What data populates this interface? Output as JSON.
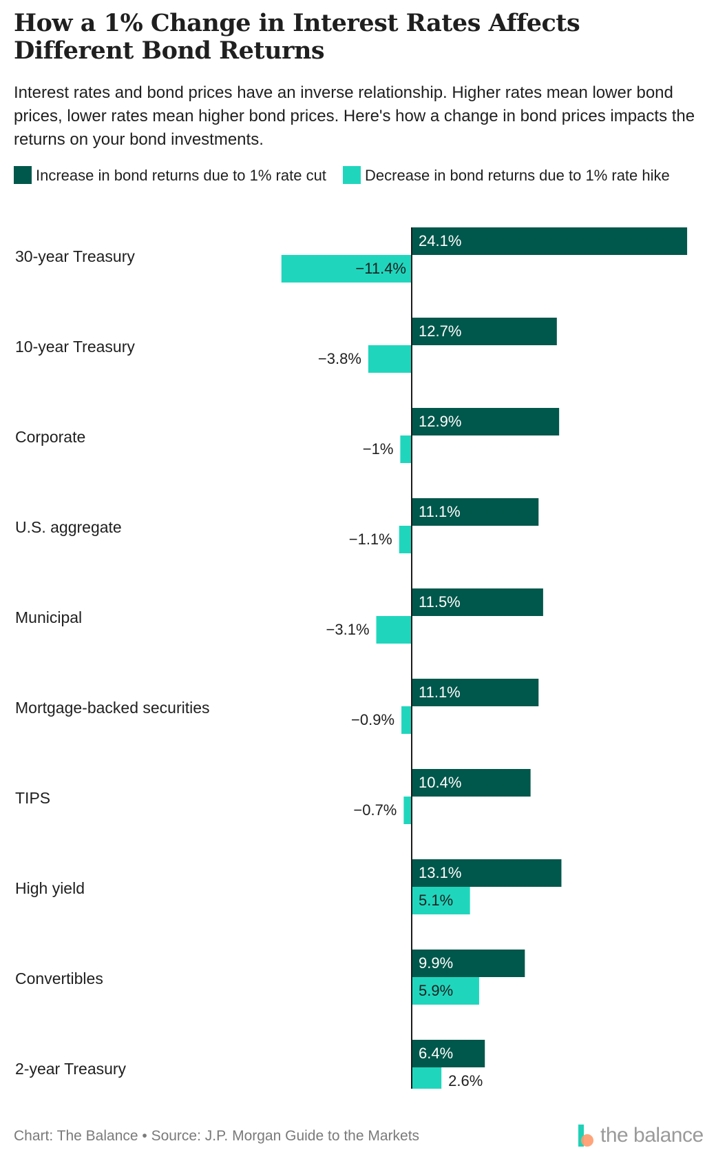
{
  "header": {
    "title": "How a 1% Change in Interest Rates Affects Different Bond Returns",
    "subtitle": "Interest rates and bond prices have an inverse relationship. Higher rates mean lower bond prices, lower rates mean higher bond prices. Here's how a change in bond prices impacts the returns on your bond investments."
  },
  "legend": {
    "items": [
      {
        "label": "Increase in bond returns due to 1% rate cut",
        "color": "#00574b"
      },
      {
        "label": "Decrease in bond returns due to 1% rate hike",
        "color": "#1fd6bd"
      }
    ]
  },
  "colors": {
    "cut": "#00574b",
    "hike": "#1fd6bd",
    "axis": "#1a1a1a",
    "label_dark": "#1f1f1f",
    "label_light": "#ffffff"
  },
  "chart_data": {
    "type": "bar",
    "orientation": "horizontal",
    "categories": [
      "30-year Treasury",
      "10-year Treasury",
      "Corporate",
      "U.S. aggregate",
      "Municipal",
      "Mortgage-backed securities",
      "TIPS",
      "High yield",
      "Convertibles",
      "2-year Treasury"
    ],
    "series": [
      {
        "name": "Increase in bond returns due to 1% rate cut",
        "values": [
          24.1,
          12.7,
          12.9,
          11.1,
          11.5,
          11.1,
          10.4,
          13.1,
          9.9,
          6.4
        ],
        "labels": [
          "24.1%",
          "12.7%",
          "12.9%",
          "11.1%",
          "11.5%",
          "11.1%",
          "10.4%",
          "13.1%",
          "9.9%",
          "6.4%"
        ]
      },
      {
        "name": "Decrease in bond returns due to 1% rate hike",
        "values": [
          -11.4,
          -3.8,
          -1,
          -1.1,
          -3.1,
          -0.9,
          -0.7,
          5.1,
          5.9,
          2.6
        ],
        "labels": [
          "−11.4%",
          "−3.8%",
          "−1%",
          "−1.1%",
          "−3.1%",
          "−0.9%",
          "−0.7%",
          "5.1%",
          "5.9%",
          "2.6%"
        ]
      }
    ],
    "xlim": [
      -12.6,
      24.5
    ],
    "grid": false,
    "legend_position": "top-left"
  },
  "footer": {
    "credit": "Chart: The Balance • Source: J.P. Morgan Guide to the Markets",
    "logo_text": "the balance"
  }
}
